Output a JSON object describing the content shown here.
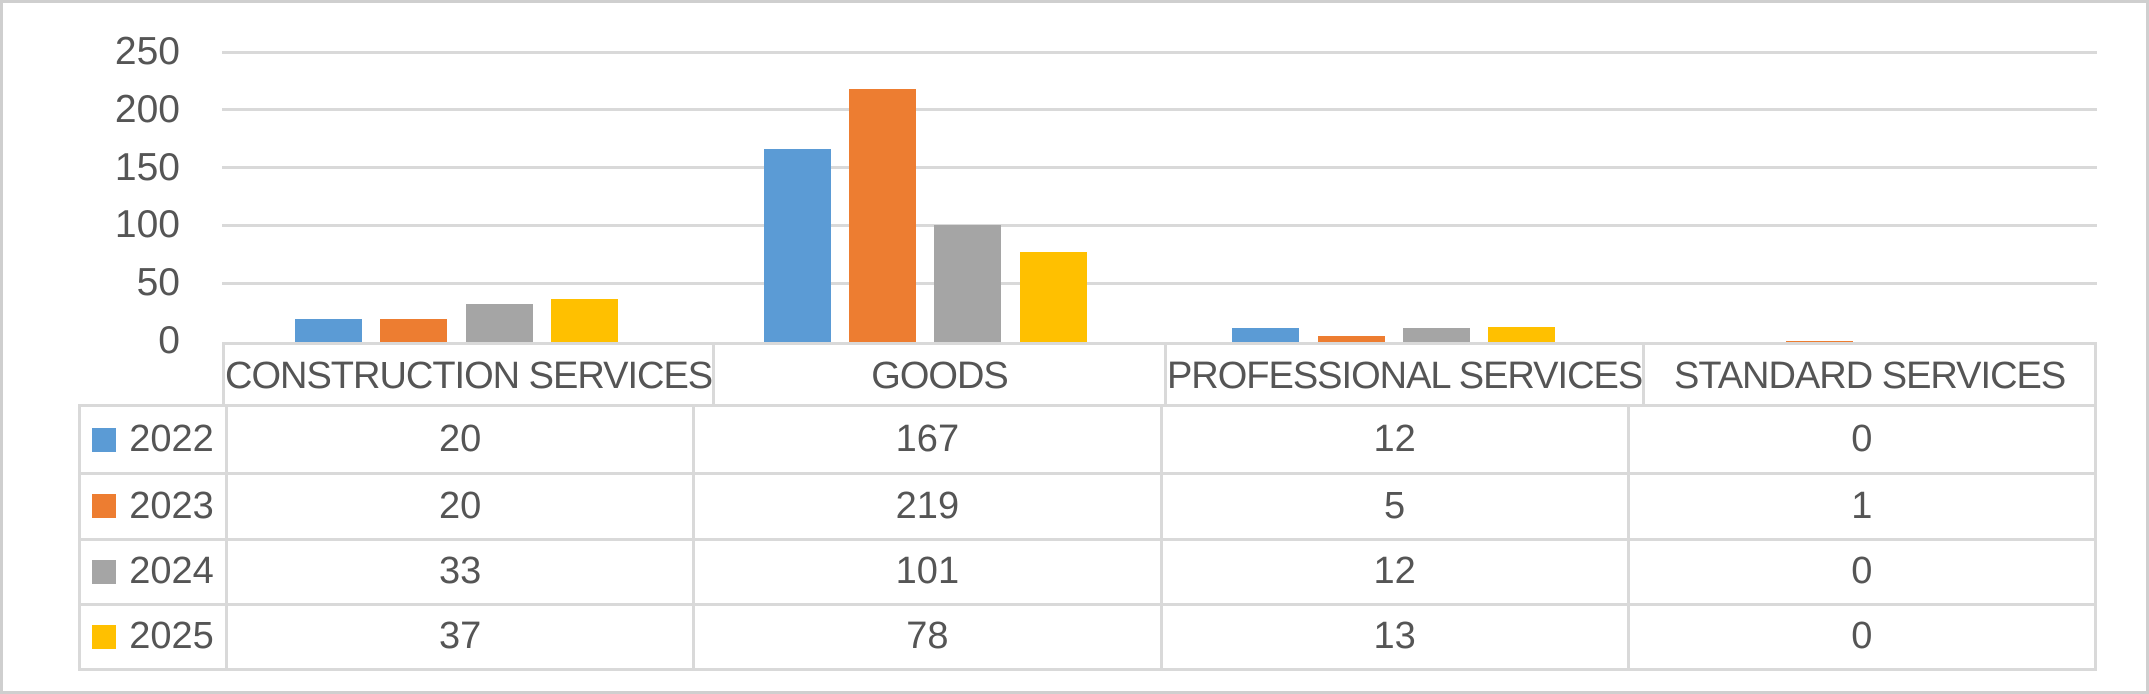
{
  "chart_data": {
    "type": "bar",
    "title": "",
    "categories": [
      "CONSTRUCTION SERVICES",
      "GOODS",
      "PROFESSIONAL SERVICES",
      "STANDARD SERVICES"
    ],
    "series": [
      {
        "name": "2022",
        "color": "#5B9BD5",
        "values": [
          20,
          167,
          12,
          0
        ]
      },
      {
        "name": "2023",
        "color": "#ED7D31",
        "values": [
          20,
          219,
          5,
          1
        ]
      },
      {
        "name": "2024",
        "color": "#A5A5A5",
        "values": [
          33,
          101,
          12,
          0
        ]
      },
      {
        "name": "2025",
        "color": "#FFC000",
        "values": [
          37,
          78,
          13,
          0
        ]
      }
    ],
    "xlabel": "",
    "ylabel": "",
    "ylim": [
      0,
      250
    ],
    "yticks": [
      250,
      200,
      150,
      100,
      50,
      0
    ],
    "grid": true,
    "gridline_color": "#D9D9D9",
    "legend_position": "data-table-left",
    "data_table_shown": true
  }
}
